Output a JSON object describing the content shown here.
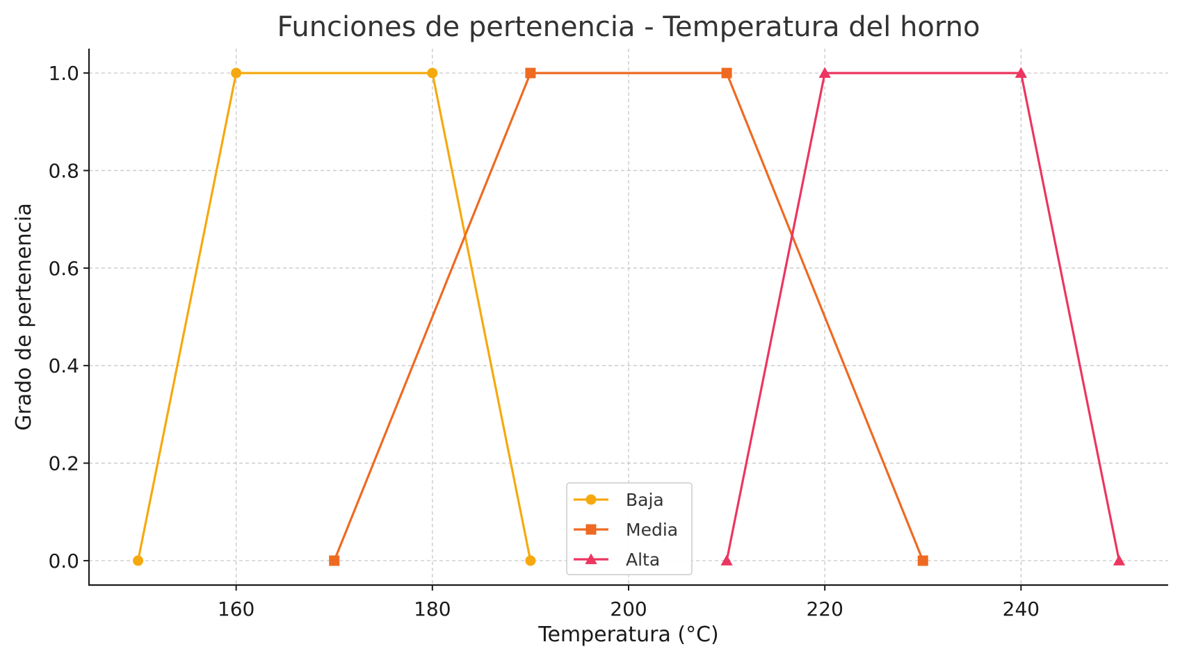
{
  "chart_data": {
    "type": "line",
    "title": "Funciones de pertenencia - Temperatura del horno",
    "xlabel": "Temperatura (°C)",
    "ylabel": "Grado de pertenencia",
    "xlim": [
      145,
      255
    ],
    "ylim": [
      -0.05,
      1.05
    ],
    "xticks": [
      160,
      180,
      200,
      220,
      240
    ],
    "yticks": [
      0.0,
      0.2,
      0.4,
      0.6,
      0.8,
      1.0
    ],
    "xtick_labels": [
      "160",
      "180",
      "200",
      "220",
      "240"
    ],
    "ytick_labels": [
      "0.0",
      "0.2",
      "0.4",
      "0.6",
      "0.8",
      "1.0"
    ],
    "grid": true,
    "legend_position": "bottom-center",
    "series": [
      {
        "name": "Baja",
        "color": "#F6A90E",
        "marker": "circle",
        "x": [
          150,
          160,
          180,
          190
        ],
        "y": [
          0,
          1,
          1,
          0
        ]
      },
      {
        "name": "Media",
        "color": "#EE6A22",
        "marker": "square",
        "x": [
          170,
          190,
          210,
          230
        ],
        "y": [
          0,
          1,
          1,
          0
        ]
      },
      {
        "name": "Alta",
        "color": "#EC3560",
        "marker": "triangle",
        "x": [
          210,
          220,
          240,
          250
        ],
        "y": [
          0,
          1,
          1,
          0
        ]
      }
    ]
  }
}
